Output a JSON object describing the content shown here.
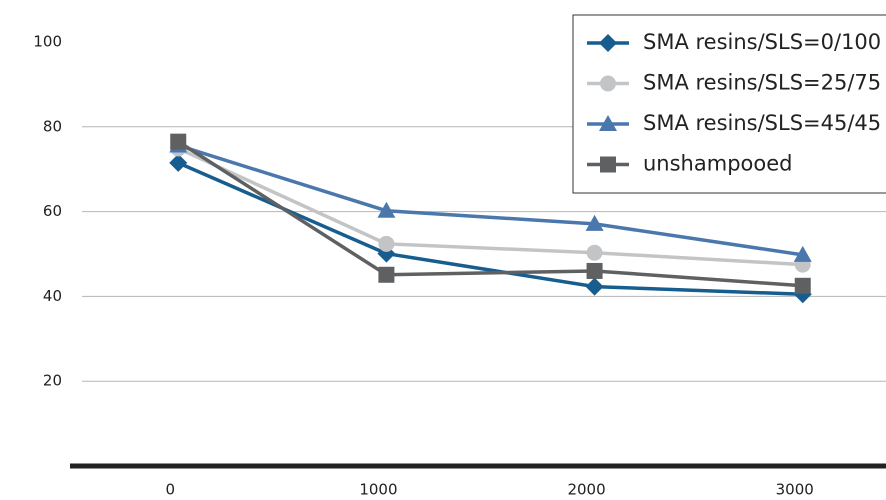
{
  "chart_data": {
    "type": "line",
    "x": [
      0,
      1000,
      2000,
      3000
    ],
    "xlim": [
      -520,
      3400
    ],
    "xticks": [
      0,
      1000,
      2000,
      3000
    ],
    "ylim": [
      0,
      100
    ],
    "yticks": [
      20,
      40,
      60,
      80,
      100
    ],
    "grid": true,
    "legend": "upper-right",
    "series": [
      {
        "name": "SMA resins/SLS=0/100",
        "color": "#175e8f",
        "marker": "diamond",
        "values": [
          71.5,
          50.1,
          42.3,
          40.5
        ]
      },
      {
        "name": "SMA resins/SLS=25/75",
        "color": "#c3c4c6",
        "marker": "circle",
        "values": [
          74.9,
          52.4,
          50.3,
          47.5
        ]
      },
      {
        "name": "SMA resins/SLS=45/45",
        "color": "#4a78ad",
        "marker": "triangle",
        "values": [
          75.6,
          60.2,
          57.1,
          49.8
        ]
      },
      {
        "name": "unshampooed",
        "color": "#5f6062",
        "marker": "square",
        "values": [
          76.5,
          45.1,
          46.0,
          42.5
        ]
      }
    ]
  }
}
